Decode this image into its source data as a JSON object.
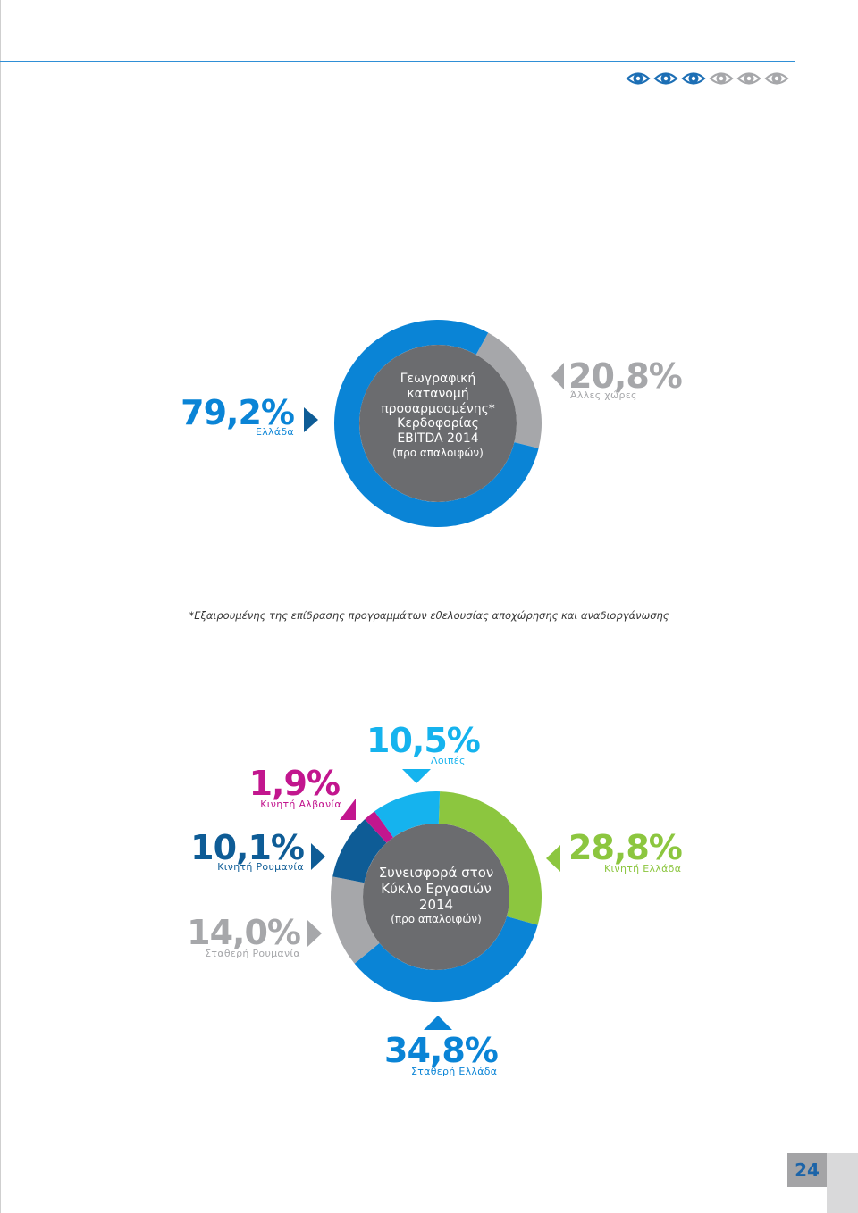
{
  "colors": {
    "blue": "#0a84d6",
    "light_gray": "#a6a7aa",
    "center_gray": "#6b6c6f",
    "green": "#8cc63f",
    "cyan": "#15b3ee",
    "magenta": "#c2168e",
    "navy": "#0e5c96"
  },
  "header": {
    "icons": [
      "eye-icon",
      "eye-icon",
      "eye-icon",
      "eye-icon-light",
      "eye-icon-light",
      "eye-icon-light"
    ]
  },
  "chart_data": [
    {
      "type": "pie",
      "variant": "donut",
      "center_lines": [
        "Γεωγραφική",
        "κατανομή",
        "προσαρμοσμένης*",
        "Κερδοφορίας",
        "EBITDA 2014",
        "(προ απαλοιφών)"
      ],
      "slices": [
        {
          "name": "Ελλάδα",
          "value": 79.2,
          "value_label": "79,2%",
          "color": "#0a84d6"
        },
        {
          "name": "Άλλες χώρες",
          "value": 20.8,
          "value_label": "20,8%",
          "color": "#a6a7aa"
        }
      ]
    },
    {
      "type": "pie",
      "variant": "donut",
      "center_lines": [
        "Συνεισφορά στον",
        "Κύκλο Εργασιών",
        "2014",
        "(προ απαλοιφών)"
      ],
      "slices": [
        {
          "name": "Κινητή Ελλάδα",
          "value": 28.8,
          "value_label": "28,8%",
          "color": "#8cc63f"
        },
        {
          "name": "Σταθερή Ελλάδα",
          "value": 34.8,
          "value_label": "34,8%",
          "color": "#0a84d6"
        },
        {
          "name": "Σταθερή Ρουμανία",
          "value": 14.0,
          "value_label": "14,0%",
          "color": "#a6a7aa"
        },
        {
          "name": "Κινητή Ρουμανία",
          "value": 10.1,
          "value_label": "10,1%",
          "color": "#0e5c96"
        },
        {
          "name": "Κινητή Αλβανία",
          "value": 1.9,
          "value_label": "1,9%",
          "color": "#c2168e"
        },
        {
          "name": "Λοιπές",
          "value": 10.5,
          "value_label": "10,5%",
          "color": "#15b3ee"
        }
      ]
    }
  ],
  "footnote": "*Εξαιρουμένης της επίδρασης προγραμμάτων εθελουσίας αποχώρησης και αναδιοργάνωσης",
  "page_number": "24"
}
